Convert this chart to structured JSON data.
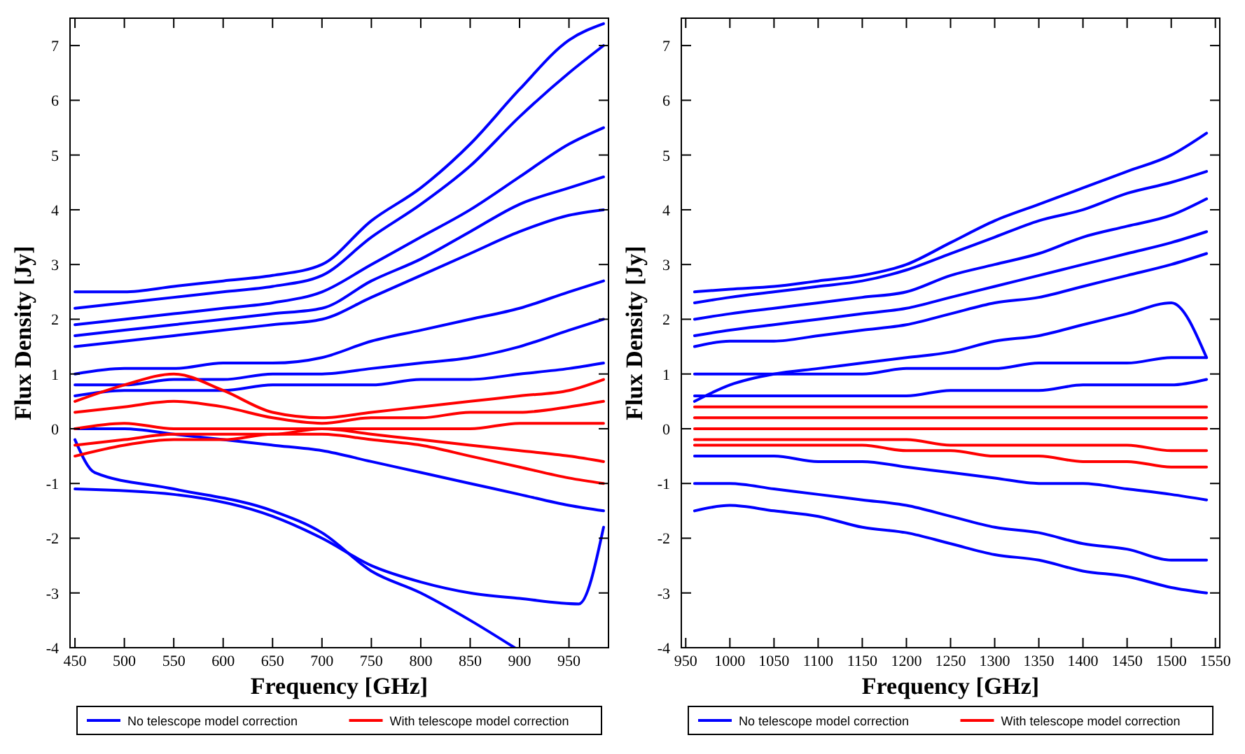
{
  "chart_data": [
    {
      "type": "line",
      "xlabel": "Frequency [GHz]",
      "ylabel": "Flux Density [Jy]",
      "xlim": [
        445,
        990
      ],
      "ylim": [
        -4,
        7.5
      ],
      "xticks": [
        450,
        500,
        550,
        600,
        650,
        700,
        750,
        800,
        850,
        900,
        950
      ],
      "yticks": [
        -4,
        -3,
        -2,
        -1,
        0,
        1,
        2,
        3,
        4,
        5,
        6,
        7
      ],
      "legend": "bottom",
      "series": [
        {
          "name": "No telescope model correction",
          "color": "#0000ff",
          "x": [
            450,
            500,
            550,
            600,
            650,
            700,
            750,
            800,
            850,
            900,
            950,
            985
          ],
          "values": [
            2.5,
            2.5,
            2.6,
            2.7,
            2.8,
            3.0,
            3.8,
            4.4,
            5.2,
            6.2,
            7.1,
            7.4
          ]
        },
        {
          "color": "#0000ff",
          "x": [
            450,
            500,
            550,
            600,
            650,
            700,
            750,
            800,
            850,
            900,
            950,
            985
          ],
          "values": [
            2.2,
            2.3,
            2.4,
            2.5,
            2.6,
            2.8,
            3.5,
            4.1,
            4.8,
            5.7,
            6.5,
            7.0
          ]
        },
        {
          "color": "#0000ff",
          "x": [
            450,
            500,
            550,
            600,
            650,
            700,
            750,
            800,
            850,
            900,
            950,
            985
          ],
          "values": [
            1.9,
            2.0,
            2.1,
            2.2,
            2.3,
            2.5,
            3.0,
            3.5,
            4.0,
            4.6,
            5.2,
            5.5
          ]
        },
        {
          "color": "#0000ff",
          "x": [
            450,
            500,
            550,
            600,
            650,
            700,
            750,
            800,
            850,
            900,
            950,
            985
          ],
          "values": [
            1.7,
            1.8,
            1.9,
            2.0,
            2.1,
            2.2,
            2.7,
            3.1,
            3.6,
            4.1,
            4.4,
            4.6
          ]
        },
        {
          "color": "#0000ff",
          "x": [
            450,
            500,
            550,
            600,
            650,
            700,
            750,
            800,
            850,
            900,
            950,
            985
          ],
          "values": [
            1.5,
            1.6,
            1.7,
            1.8,
            1.9,
            2.0,
            2.4,
            2.8,
            3.2,
            3.6,
            3.9,
            4.0
          ]
        },
        {
          "color": "#0000ff",
          "x": [
            450,
            500,
            550,
            600,
            650,
            700,
            750,
            800,
            850,
            900,
            950,
            985
          ],
          "values": [
            1.0,
            1.1,
            1.1,
            1.2,
            1.2,
            1.3,
            1.6,
            1.8,
            2.0,
            2.2,
            2.5,
            2.7
          ]
        },
        {
          "color": "#0000ff",
          "x": [
            450,
            500,
            550,
            600,
            650,
            700,
            750,
            800,
            850,
            900,
            950,
            985
          ],
          "values": [
            0.8,
            0.8,
            0.9,
            0.9,
            1.0,
            1.0,
            1.1,
            1.2,
            1.3,
            1.5,
            1.8,
            2.0
          ]
        },
        {
          "color": "#0000ff",
          "x": [
            450,
            500,
            550,
            600,
            650,
            700,
            750,
            800,
            850,
            900,
            950,
            985
          ],
          "values": [
            0.6,
            0.7,
            0.7,
            0.7,
            0.8,
            0.8,
            0.8,
            0.9,
            0.9,
            1.0,
            1.1,
            1.2
          ]
        },
        {
          "color": "#0000ff",
          "x": [
            450,
            550,
            650,
            700,
            750,
            800,
            850,
            900,
            960,
            985
          ],
          "values": [
            -1.1,
            -1.2,
            -1.6,
            -2.0,
            -2.5,
            -2.8,
            -3.0,
            -3.1,
            -3.2,
            -1.8
          ]
        },
        {
          "color": "#0000ff",
          "x": [
            450,
            470,
            550,
            650,
            700,
            750,
            800,
            850,
            895
          ],
          "values": [
            -0.2,
            -0.8,
            -1.1,
            -1.5,
            -1.9,
            -2.6,
            -3.0,
            -3.5,
            -4.0
          ]
        },
        {
          "color": "#0000ff",
          "x": [
            450,
            500,
            550,
            600,
            650,
            700,
            750,
            800,
            850,
            900,
            950,
            985
          ],
          "values": [
            0,
            0,
            -0.1,
            -0.2,
            -0.3,
            -0.4,
            -0.6,
            -0.8,
            -1.0,
            -1.2,
            -1.4,
            -1.5
          ]
        },
        {
          "name": "With telescope model correction",
          "color": "#ff0000",
          "x": [
            450,
            500,
            550,
            600,
            650,
            700,
            750,
            800,
            850,
            900,
            950,
            985
          ],
          "values": [
            0.5,
            0.8,
            1.0,
            0.7,
            0.3,
            0.2,
            0.3,
            0.4,
            0.5,
            0.6,
            0.7,
            0.9
          ]
        },
        {
          "color": "#ff0000",
          "x": [
            450,
            500,
            550,
            600,
            650,
            700,
            750,
            800,
            850,
            900,
            950,
            985
          ],
          "values": [
            0.3,
            0.4,
            0.5,
            0.4,
            0.2,
            0.1,
            0.2,
            0.2,
            0.3,
            0.3,
            0.4,
            0.5
          ]
        },
        {
          "color": "#ff0000",
          "x": [
            450,
            500,
            550,
            600,
            650,
            700,
            750,
            800,
            850,
            900,
            950,
            985
          ],
          "values": [
            0,
            0.1,
            0,
            0,
            0,
            0,
            0,
            0,
            0,
            0.1,
            0.1,
            0.1
          ]
        },
        {
          "color": "#ff0000",
          "x": [
            450,
            500,
            550,
            600,
            650,
            700,
            750,
            800,
            850,
            900,
            950,
            985
          ],
          "values": [
            -0.3,
            -0.2,
            -0.1,
            -0.1,
            -0.1,
            0,
            -0.1,
            -0.2,
            -0.3,
            -0.4,
            -0.5,
            -0.6
          ]
        },
        {
          "color": "#ff0000",
          "x": [
            450,
            500,
            550,
            600,
            650,
            700,
            750,
            800,
            850,
            900,
            950,
            985
          ],
          "values": [
            -0.5,
            -0.3,
            -0.2,
            -0.2,
            -0.1,
            -0.1,
            -0.2,
            -0.3,
            -0.5,
            -0.7,
            -0.9,
            -1.0
          ]
        }
      ]
    },
    {
      "type": "line",
      "xlabel": "Frequency [GHz]",
      "ylabel": "Flux Density [Jy]",
      "xlim": [
        945,
        1555
      ],
      "ylim": [
        -4,
        7.5
      ],
      "xticks": [
        950,
        1000,
        1050,
        1100,
        1150,
        1200,
        1250,
        1300,
        1350,
        1400,
        1450,
        1500,
        1550
      ],
      "yticks": [
        -4,
        -3,
        -2,
        -1,
        0,
        1,
        2,
        3,
        4,
        5,
        6,
        7
      ],
      "legend": "bottom",
      "series": [
        {
          "name": "No telescope model correction",
          "color": "#0000ff",
          "x": [
            960,
            1000,
            1050,
            1100,
            1150,
            1200,
            1250,
            1300,
            1350,
            1400,
            1450,
            1500,
            1540
          ],
          "values": [
            2.5,
            2.55,
            2.6,
            2.7,
            2.8,
            3.0,
            3.4,
            3.8,
            4.1,
            4.4,
            4.7,
            5.0,
            5.4
          ]
        },
        {
          "color": "#0000ff",
          "x": [
            960,
            1000,
            1050,
            1100,
            1150,
            1200,
            1250,
            1300,
            1350,
            1400,
            1450,
            1500,
            1540
          ],
          "values": [
            2.3,
            2.4,
            2.5,
            2.6,
            2.7,
            2.9,
            3.2,
            3.5,
            3.8,
            4.0,
            4.3,
            4.5,
            4.7
          ]
        },
        {
          "color": "#0000ff",
          "x": [
            960,
            1000,
            1050,
            1100,
            1150,
            1200,
            1250,
            1300,
            1350,
            1400,
            1450,
            1500,
            1540
          ],
          "values": [
            2.0,
            2.1,
            2.2,
            2.3,
            2.4,
            2.5,
            2.8,
            3.0,
            3.2,
            3.5,
            3.7,
            3.9,
            4.2
          ]
        },
        {
          "color": "#0000ff",
          "x": [
            960,
            1000,
            1050,
            1100,
            1150,
            1200,
            1250,
            1300,
            1350,
            1400,
            1450,
            1500,
            1540
          ],
          "values": [
            1.7,
            1.8,
            1.9,
            2.0,
            2.1,
            2.2,
            2.4,
            2.6,
            2.8,
            3.0,
            3.2,
            3.4,
            3.6
          ]
        },
        {
          "color": "#0000ff",
          "x": [
            960,
            1000,
            1050,
            1100,
            1150,
            1200,
            1250,
            1300,
            1350,
            1400,
            1450,
            1500,
            1540
          ],
          "values": [
            1.5,
            1.6,
            1.6,
            1.7,
            1.8,
            1.9,
            2.1,
            2.3,
            2.4,
            2.6,
            2.8,
            3.0,
            3.2
          ]
        },
        {
          "color": "#0000ff",
          "x": [
            960,
            1000,
            1050,
            1100,
            1150,
            1200,
            1250,
            1300,
            1350,
            1400,
            1450,
            1500,
            1540
          ],
          "values": [
            0.5,
            0.8,
            1.0,
            1.1,
            1.2,
            1.3,
            1.4,
            1.6,
            1.7,
            1.9,
            2.1,
            2.3,
            1.3
          ]
        },
        {
          "color": "#0000ff",
          "x": [
            960,
            1000,
            1050,
            1100,
            1150,
            1200,
            1250,
            1300,
            1350,
            1400,
            1450,
            1500,
            1540
          ],
          "values": [
            1.0,
            1.0,
            1.0,
            1.0,
            1.0,
            1.1,
            1.1,
            1.1,
            1.2,
            1.2,
            1.2,
            1.3,
            1.3
          ]
        },
        {
          "color": "#0000ff",
          "x": [
            960,
            1000,
            1050,
            1100,
            1150,
            1200,
            1250,
            1300,
            1350,
            1400,
            1450,
            1500,
            1540
          ],
          "values": [
            0.6,
            0.6,
            0.6,
            0.6,
            0.6,
            0.6,
            0.7,
            0.7,
            0.7,
            0.8,
            0.8,
            0.8,
            0.9
          ]
        },
        {
          "color": "#0000ff",
          "x": [
            960,
            1000,
            1050,
            1100,
            1150,
            1200,
            1250,
            1300,
            1350,
            1400,
            1450,
            1500,
            1540
          ],
          "values": [
            -1.0,
            -1.0,
            -1.1,
            -1.2,
            -1.3,
            -1.4,
            -1.6,
            -1.8,
            -1.9,
            -2.1,
            -2.2,
            -2.4,
            -2.4
          ]
        },
        {
          "color": "#0000ff",
          "x": [
            960,
            1000,
            1050,
            1100,
            1150,
            1200,
            1250,
            1300,
            1350,
            1400,
            1450,
            1500,
            1540
          ],
          "values": [
            -1.5,
            -1.4,
            -1.5,
            -1.6,
            -1.8,
            -1.9,
            -2.1,
            -2.3,
            -2.4,
            -2.6,
            -2.7,
            -2.9,
            -3.0
          ]
        },
        {
          "color": "#0000ff",
          "x": [
            960,
            1000,
            1050,
            1100,
            1150,
            1200,
            1250,
            1300,
            1350,
            1400,
            1450,
            1500,
            1540
          ],
          "values": [
            -0.5,
            -0.5,
            -0.5,
            -0.6,
            -0.6,
            -0.7,
            -0.8,
            -0.9,
            -1.0,
            -1.0,
            -1.1,
            -1.2,
            -1.3
          ]
        },
        {
          "name": "With telescope model correction",
          "color": "#ff0000",
          "x": [
            960,
            1000,
            1050,
            1100,
            1150,
            1200,
            1250,
            1300,
            1350,
            1400,
            1450,
            1500,
            1540
          ],
          "values": [
            0.4,
            0.4,
            0.4,
            0.4,
            0.4,
            0.4,
            0.4,
            0.4,
            0.4,
            0.4,
            0.4,
            0.4,
            0.4
          ]
        },
        {
          "color": "#ff0000",
          "x": [
            960,
            1000,
            1050,
            1100,
            1150,
            1200,
            1250,
            1300,
            1350,
            1400,
            1450,
            1500,
            1540
          ],
          "values": [
            0.2,
            0.2,
            0.2,
            0.2,
            0.2,
            0.2,
            0.2,
            0.2,
            0.2,
            0.2,
            0.2,
            0.2,
            0.2
          ]
        },
        {
          "color": "#ff0000",
          "x": [
            960,
            1000,
            1050,
            1100,
            1150,
            1200,
            1250,
            1300,
            1350,
            1400,
            1450,
            1500,
            1540
          ],
          "values": [
            0,
            0,
            0,
            0,
            0,
            0,
            0,
            0,
            0,
            0,
            0,
            0,
            0
          ]
        },
        {
          "color": "#ff0000",
          "x": [
            960,
            1000,
            1050,
            1100,
            1150,
            1200,
            1250,
            1300,
            1350,
            1400,
            1450,
            1500,
            1540
          ],
          "values": [
            -0.2,
            -0.2,
            -0.2,
            -0.2,
            -0.2,
            -0.2,
            -0.3,
            -0.3,
            -0.3,
            -0.3,
            -0.3,
            -0.4,
            -0.4
          ]
        },
        {
          "color": "#ff0000",
          "x": [
            960,
            1000,
            1050,
            1100,
            1150,
            1200,
            1250,
            1300,
            1350,
            1400,
            1450,
            1500,
            1540
          ],
          "values": [
            -0.3,
            -0.3,
            -0.3,
            -0.3,
            -0.3,
            -0.4,
            -0.4,
            -0.5,
            -0.5,
            -0.6,
            -0.6,
            -0.7,
            -0.7
          ]
        }
      ]
    }
  ]
}
